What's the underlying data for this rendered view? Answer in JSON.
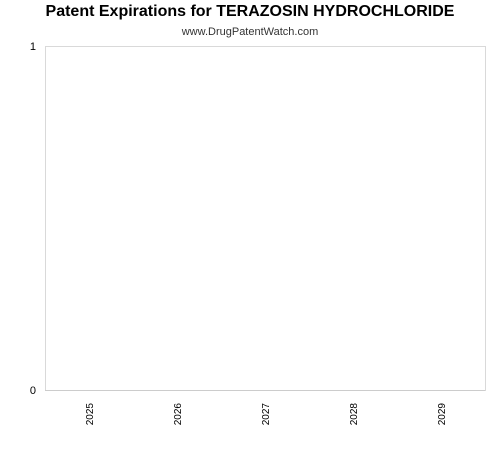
{
  "chart_data": {
    "type": "bar",
    "title": "Patent Expirations for TERAZOSIN HYDROCHLORIDE",
    "subtitle": "www.DrugPatentWatch.com",
    "categories": [
      "2025",
      "2026",
      "2027",
      "2028",
      "2029"
    ],
    "values": [
      0,
      0,
      0,
      0,
      0
    ],
    "ylim": [
      0,
      1
    ],
    "yticks": [
      "0",
      "1"
    ],
    "xlabel": "",
    "ylabel": "",
    "grid": false,
    "legend": "none",
    "colors": {
      "plot_border": "#d9d9d9",
      "axis": "#cccccc",
      "tick_label": "#000000",
      "bar": "#4f81bd"
    }
  }
}
